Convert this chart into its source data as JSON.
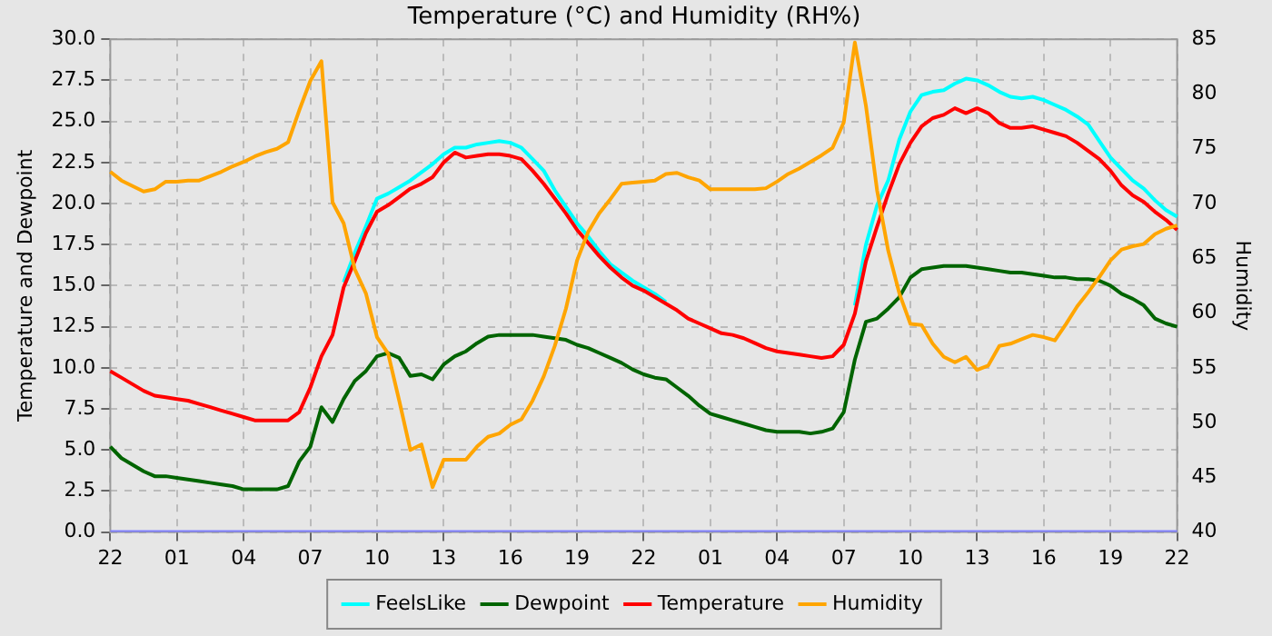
{
  "chart_data": {
    "type": "line",
    "title": "Temperature (°C) and Humidity (RH%)",
    "ylabel": "Temperature and Dewpoint",
    "y2label": "Humidity",
    "categories": [
      "22",
      null,
      null,
      null,
      null,
      null,
      "01",
      null,
      null,
      null,
      null,
      null,
      "04",
      null,
      null,
      null,
      null,
      null,
      "07",
      null,
      null,
      null,
      null,
      null,
      "10",
      null,
      null,
      null,
      null,
      null,
      "13",
      null,
      null,
      null,
      null,
      null,
      "16",
      null,
      null,
      null,
      null,
      null,
      "19",
      null,
      null,
      null,
      null,
      null,
      "22",
      null,
      null,
      null,
      null,
      null,
      "01",
      null,
      null,
      null,
      null,
      null,
      "04",
      null,
      null,
      null,
      null,
      null,
      "07",
      null,
      null,
      null,
      null,
      null,
      "10",
      null,
      null,
      null,
      null,
      null,
      "13",
      null,
      null,
      null,
      null,
      null,
      "16",
      null,
      null,
      null,
      null,
      null,
      "19",
      null,
      null,
      null,
      null,
      null,
      "22"
    ],
    "ylim": [
      0,
      30
    ],
    "yticks": [
      {
        "value": 0,
        "label": "0.0"
      },
      {
        "value": 2.5,
        "label": "2.5"
      },
      {
        "value": 5,
        "label": "5.0"
      },
      {
        "value": 7.5,
        "label": "7.5"
      },
      {
        "value": 10,
        "label": "10.0"
      },
      {
        "value": 12.5,
        "label": "12.5"
      },
      {
        "value": 15,
        "label": "15.0"
      },
      {
        "value": 17.5,
        "label": "17.5"
      },
      {
        "value": 20,
        "label": "20.0"
      },
      {
        "value": 22.5,
        "label": "22.5"
      },
      {
        "value": 25,
        "label": "25.0"
      },
      {
        "value": 27.5,
        "label": "27.5"
      },
      {
        "value": 30,
        "label": "30.0"
      }
    ],
    "y2lim": [
      40,
      85
    ],
    "y2ticks": [
      40,
      45,
      50,
      55,
      60,
      65,
      70,
      75,
      80,
      85
    ],
    "grid": true,
    "legend": "bottom",
    "marker": "none",
    "line_style": "solid",
    "series": [
      {
        "name": "FeelsLike",
        "color": "#00ffff",
        "values": [
          null,
          null,
          null,
          null,
          null,
          null,
          null,
          null,
          null,
          null,
          null,
          null,
          null,
          null,
          null,
          null,
          null,
          null,
          null,
          null,
          null,
          15.2,
          17.0,
          18.6,
          20.3,
          20.6,
          21.0,
          21.4,
          21.9,
          22.4,
          23.0,
          23.4,
          23.4,
          23.6,
          23.7,
          23.8,
          23.7,
          23.4,
          22.7,
          22.0,
          20.8,
          19.8,
          18.8,
          18.0,
          17.1,
          16.3,
          15.8,
          15.3,
          14.9,
          14.5,
          14.0,
          null,
          null,
          null,
          null,
          null,
          null,
          null,
          null,
          null,
          null,
          null,
          null,
          null,
          null,
          null,
          null,
          13.8,
          17.5,
          19.9,
          21.4,
          23.9,
          25.6,
          26.6,
          26.8,
          26.9,
          27.3,
          27.6,
          27.5,
          27.2,
          26.8,
          26.5,
          26.4,
          26.5,
          26.3,
          26.0,
          25.7,
          25.3,
          24.8,
          23.8,
          22.8,
          22.1,
          21.4,
          20.9,
          20.2,
          19.6,
          19.2
        ]
      },
      {
        "name": "Dewpoint",
        "color": "#006400",
        "values": [
          5.2,
          4.5,
          4.1,
          3.7,
          3.4,
          3.4,
          3.3,
          3.2,
          3.1,
          3.0,
          2.9,
          2.8,
          2.6,
          2.6,
          2.6,
          2.6,
          2.8,
          4.3,
          5.2,
          7.6,
          6.7,
          8.1,
          9.2,
          9.8,
          10.7,
          10.9,
          10.6,
          9.5,
          9.6,
          9.3,
          10.2,
          10.7,
          11.0,
          11.5,
          11.9,
          12.0,
          12.0,
          12.0,
          12.0,
          11.9,
          11.8,
          11.7,
          11.4,
          11.2,
          10.9,
          10.6,
          10.3,
          9.9,
          9.6,
          9.4,
          9.3,
          8.8,
          8.3,
          7.7,
          7.2,
          7.0,
          6.8,
          6.6,
          6.4,
          6.2,
          6.1,
          6.1,
          6.1,
          6.0,
          6.1,
          6.3,
          7.3,
          10.5,
          12.8,
          13.0,
          13.6,
          14.3,
          15.5,
          16.0,
          16.1,
          16.2,
          16.2,
          16.2,
          16.1,
          16.0,
          15.9,
          15.8,
          15.8,
          15.7,
          15.6,
          15.5,
          15.5,
          15.4,
          15.4,
          15.3,
          15.0,
          14.5,
          14.2,
          13.8,
          13.0,
          12.7,
          12.5
        ]
      },
      {
        "name": "Temperature",
        "color": "#ff0000",
        "values": [
          9.8,
          9.4,
          9.0,
          8.6,
          8.3,
          8.2,
          8.1,
          8.0,
          7.8,
          7.6,
          7.4,
          7.2,
          7.0,
          6.8,
          6.8,
          6.8,
          6.8,
          7.3,
          8.8,
          10.7,
          12.0,
          14.9,
          16.5,
          18.2,
          19.5,
          19.9,
          20.4,
          20.9,
          21.2,
          21.6,
          22.5,
          23.1,
          22.8,
          22.9,
          23.0,
          23.0,
          22.9,
          22.7,
          22.0,
          21.2,
          20.3,
          19.4,
          18.4,
          17.6,
          16.8,
          16.1,
          15.5,
          15.0,
          14.7,
          14.3,
          13.9,
          13.5,
          13.0,
          12.7,
          12.4,
          12.1,
          12.0,
          11.8,
          11.5,
          11.2,
          11.0,
          10.9,
          10.8,
          10.7,
          10.6,
          10.7,
          11.4,
          13.3,
          16.5,
          18.6,
          20.6,
          22.4,
          23.7,
          24.7,
          25.2,
          25.4,
          25.8,
          25.5,
          25.8,
          25.5,
          24.9,
          24.6,
          24.6,
          24.7,
          24.5,
          24.3,
          24.1,
          23.7,
          23.2,
          22.7,
          22.0,
          21.1,
          20.5,
          20.1,
          19.5,
          19.0,
          18.4
        ]
      },
      {
        "name": "Humidity",
        "color": "#ffa500",
        "axis": "y2",
        "values": [
          72.9,
          72.1,
          71.6,
          71.1,
          71.3,
          72.0,
          72.0,
          72.1,
          72.1,
          72.5,
          72.9,
          73.4,
          73.8,
          74.3,
          74.7,
          75.0,
          75.6,
          78.5,
          81.2,
          83.0,
          70.1,
          68.2,
          64.0,
          61.8,
          57.8,
          56.3,
          52.0,
          47.5,
          48.0,
          44.1,
          46.6,
          46.6,
          46.6,
          47.8,
          48.7,
          49.0,
          49.8,
          50.3,
          52.0,
          54.2,
          57.0,
          60.4,
          64.8,
          67.4,
          69.1,
          70.4,
          71.8,
          71.9,
          72.0,
          72.1,
          72.7,
          72.8,
          72.4,
          72.1,
          71.3,
          71.3,
          71.3,
          71.3,
          71.3,
          71.4,
          72.0,
          72.7,
          73.2,
          73.8,
          74.4,
          75.1,
          77.4,
          84.7,
          78.9,
          71.2,
          65.7,
          61.8,
          59.0,
          58.9,
          57.2,
          56.0,
          55.5,
          56.0,
          54.8,
          55.2,
          57.0,
          57.2,
          57.6,
          58.0,
          57.8,
          57.5,
          59.0,
          60.6,
          61.9,
          63.3,
          64.8,
          65.8,
          66.1,
          66.3,
          67.2,
          67.7,
          68.0
        ]
      },
      {
        "color": "#8080ff",
        "values": [
          0,
          0,
          0,
          0,
          0,
          0,
          0,
          0,
          0,
          0,
          0,
          0,
          0,
          0,
          0,
          0,
          0,
          0,
          0,
          0,
          0,
          0,
          0,
          0,
          0,
          0,
          0,
          0,
          0,
          0,
          0,
          0,
          0,
          0,
          0,
          0,
          0,
          0,
          0,
          0,
          0,
          0,
          0,
          0,
          0,
          0,
          0,
          0,
          0,
          0,
          0,
          0,
          0,
          0,
          0,
          0,
          0,
          0,
          0,
          0,
          0,
          0,
          0,
          0,
          0,
          0,
          0,
          0,
          0,
          0,
          0,
          0,
          0,
          0,
          0,
          0,
          0,
          0,
          0,
          0,
          0,
          0,
          0,
          0,
          0,
          0,
          0,
          0,
          0,
          0,
          0,
          0,
          0,
          0,
          0,
          0,
          0
        ]
      }
    ]
  }
}
